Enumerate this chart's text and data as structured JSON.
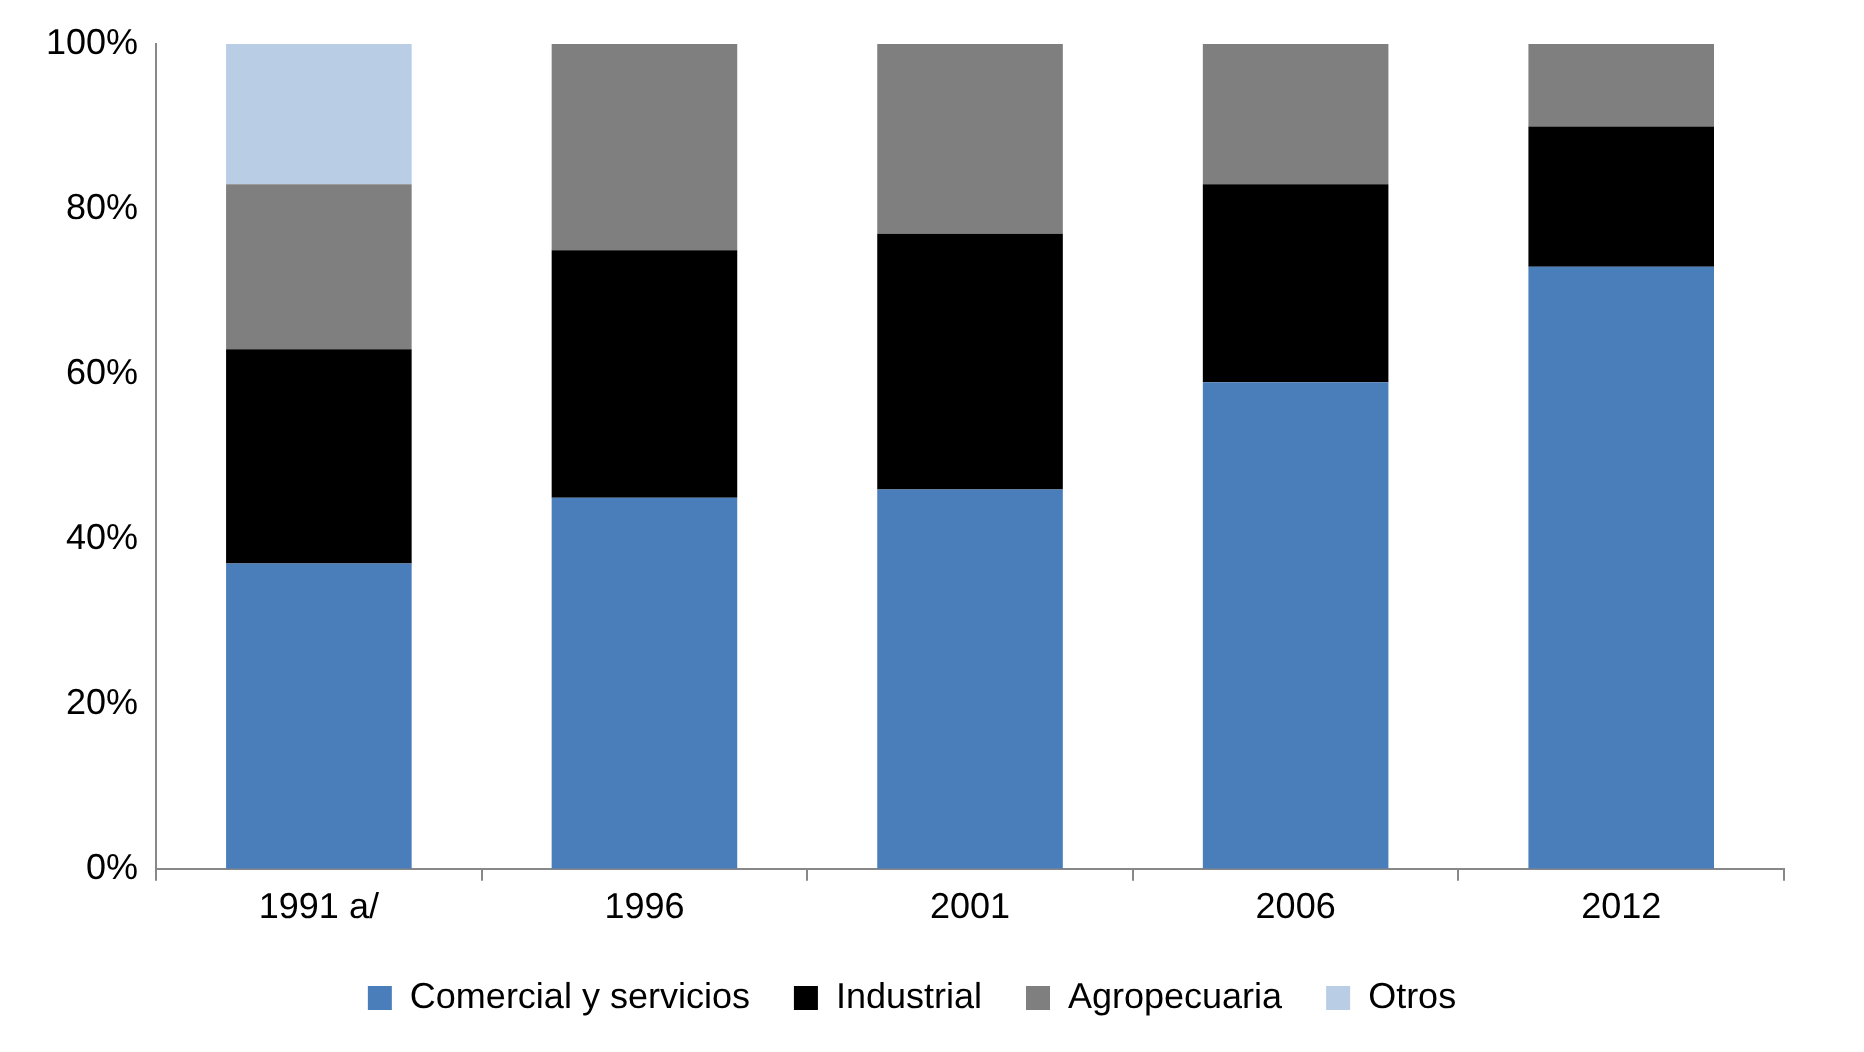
{
  "chart_data": {
    "type": "bar",
    "stacked": true,
    "categories": [
      "1991 a/",
      "1996",
      "2001",
      "2006",
      "2012"
    ],
    "series": [
      {
        "name": "Comercial y servicios",
        "color": "#4a7ebb",
        "values": [
          37,
          45,
          46,
          59,
          73
        ]
      },
      {
        "name": "Industrial",
        "color": "#000000",
        "values": [
          26,
          30,
          31,
          24,
          17
        ]
      },
      {
        "name": "Agropecuaria",
        "color": "#7f7f7f",
        "values": [
          20,
          25,
          23,
          17,
          10
        ]
      },
      {
        "name": "Otros",
        "color": "#b9cde5",
        "values": [
          17,
          null,
          null,
          null,
          null
        ]
      }
    ],
    "ylim": [
      0,
      100
    ],
    "yticks": [
      {
        "value": 0,
        "label": "0%"
      },
      {
        "value": 20,
        "label": "20%"
      },
      {
        "value": 40,
        "label": "40%"
      },
      {
        "value": 60,
        "label": "60%"
      },
      {
        "value": 80,
        "label": "80%"
      },
      {
        "value": 100,
        "label": "100%"
      }
    ],
    "grid": false,
    "legend": "bottom"
  }
}
